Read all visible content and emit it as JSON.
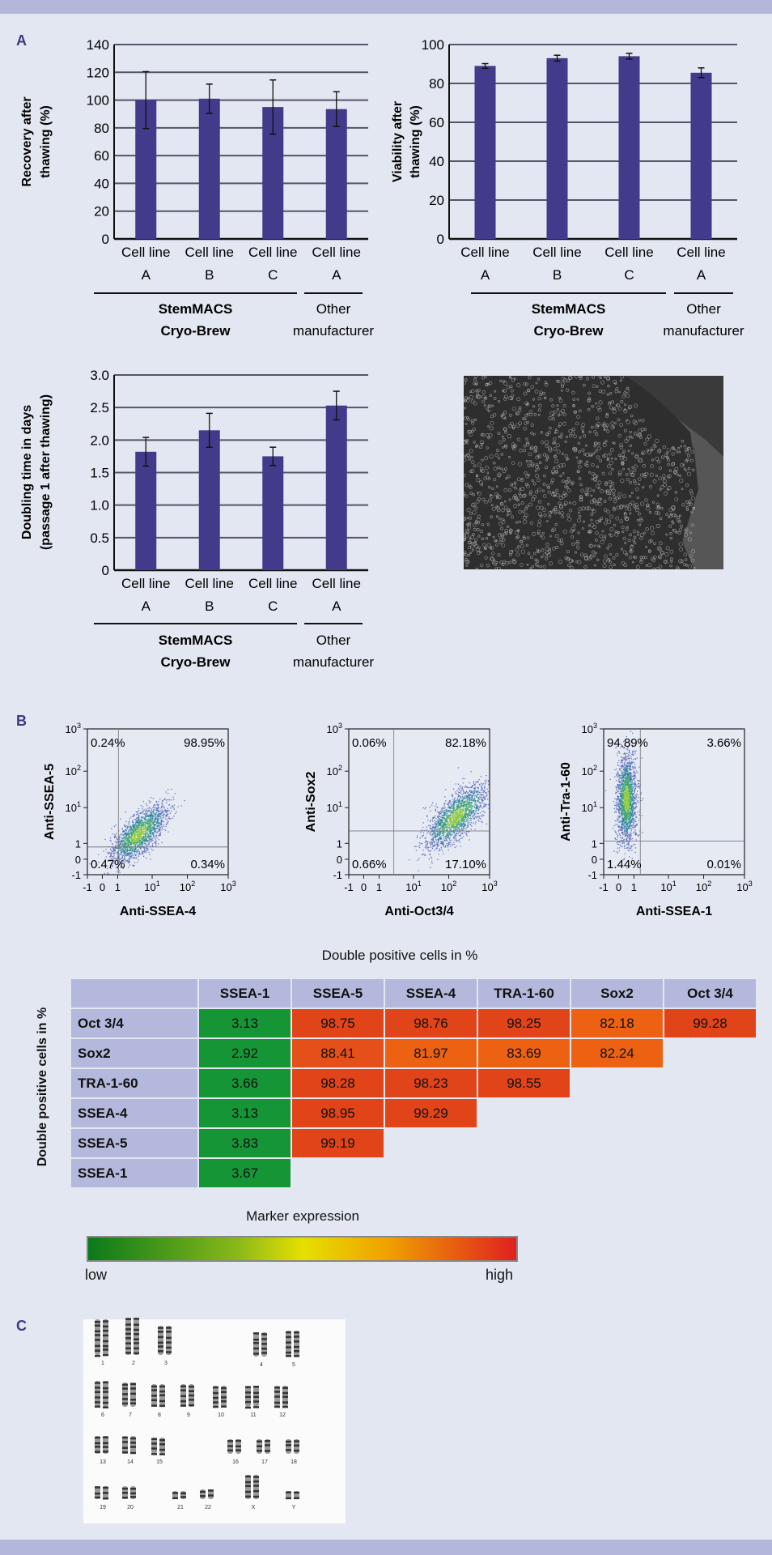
{
  "panels": {
    "a": "A",
    "b": "B",
    "c": "C"
  },
  "colors": {
    "bar": "#423a8a",
    "band": "#b3b7dc",
    "header_cell": "#b4b8dc",
    "low": "#169536",
    "mid": "#ec6212",
    "high": "#e2441a"
  },
  "chart_data": [
    {
      "type": "bar",
      "ylabel": [
        "Recovery after",
        "thawing (%)"
      ],
      "ylim": [
        0,
        140
      ],
      "yticks": [
        0,
        20,
        40,
        60,
        80,
        100,
        120,
        140
      ],
      "categories": [
        [
          "Cell line",
          "A"
        ],
        [
          "Cell line",
          "B"
        ],
        [
          "Cell line",
          "C"
        ],
        [
          "Cell line",
          "A"
        ]
      ],
      "values": [
        100,
        101,
        95,
        93.5
      ],
      "errors": [
        20.5,
        10.5,
        19.5,
        12.5
      ],
      "groups": [
        {
          "label": [
            "StemMACS",
            "Cryo-Brew"
          ],
          "span": [
            0,
            2
          ]
        },
        {
          "label": [
            "Other",
            "manufacturer"
          ],
          "span": [
            3,
            3
          ]
        }
      ],
      "grid": true
    },
    {
      "type": "bar",
      "ylabel": [
        "Viability after",
        "thawing (%)"
      ],
      "ylim": [
        0,
        100
      ],
      "yticks": [
        0,
        20,
        40,
        60,
        80,
        100
      ],
      "categories": [
        [
          "Cell line",
          "A"
        ],
        [
          "Cell line",
          "B"
        ],
        [
          "Cell line",
          "C"
        ],
        [
          "Cell line",
          "A"
        ]
      ],
      "values": [
        89,
        93,
        94,
        85.5
      ],
      "errors": [
        1.2,
        1.5,
        1.5,
        2.5
      ],
      "groups": [
        {
          "label": [
            "StemMACS",
            "Cryo-Brew"
          ],
          "span": [
            0,
            2
          ]
        },
        {
          "label": [
            "Other",
            "manufacturer"
          ],
          "span": [
            3,
            3
          ]
        }
      ],
      "grid": true
    },
    {
      "type": "bar",
      "ylabel": [
        "Doubling time in days",
        "(passage 1 after thawing)"
      ],
      "ylim": [
        0,
        3.0
      ],
      "yticks": [
        "0",
        "0.5",
        "1.0",
        "1.5",
        "2.0",
        "2.5",
        "3.0"
      ],
      "categories": [
        [
          "Cell line",
          "A"
        ],
        [
          "Cell line",
          "B"
        ],
        [
          "Cell line",
          "C"
        ],
        [
          "Cell line",
          "A"
        ]
      ],
      "values": [
        1.82,
        2.15,
        1.75,
        2.53
      ],
      "errors": [
        0.22,
        0.26,
        0.14,
        0.22
      ],
      "groups": [
        {
          "label": [
            "StemMACS",
            "Cryo-Brew"
          ],
          "span": [
            0,
            2
          ]
        },
        {
          "label": [
            "Other",
            "manufacturer"
          ],
          "span": [
            3,
            3
          ]
        }
      ],
      "grid": true
    },
    {
      "type": "scatter",
      "xlabel": "Anti-SSEA-4",
      "ylabel": "Anti-SSEA-5",
      "ticks": [
        "-1",
        "0",
        "1",
        "10^1",
        "10^2",
        "10^3"
      ],
      "quadrants": {
        "upper_left": "0.24%",
        "upper_right": "98.95%",
        "lower_left": "0.47%",
        "lower_right": "0.34%"
      }
    },
    {
      "type": "scatter",
      "xlabel": "Anti-Oct3/4",
      "ylabel": "Anti-Sox2",
      "ticks": [
        "-1",
        "0",
        "1",
        "10^1",
        "10^2",
        "10^3"
      ],
      "quadrants": {
        "upper_left": "0.06%",
        "upper_right": "82.18%",
        "lower_left": "0.66%",
        "lower_right": "17.10%"
      }
    },
    {
      "type": "scatter",
      "xlabel": "Anti-SSEA-1",
      "ylabel": "Anti-Tra-1-60",
      "ticks": [
        "-1",
        "0",
        "1",
        "10^1",
        "10^2",
        "10^3"
      ],
      "quadrants": {
        "upper_left": "94.89%",
        "upper_right": "3.66%",
        "lower_left": "1.44%",
        "lower_right": "0.01%"
      }
    },
    {
      "type": "heatmap",
      "title": "Double positive cells in %",
      "ylabel": "Double positive cells in %",
      "columns": [
        "SSEA-1",
        "SSEA-5",
        "SSEA-4",
        "TRA-1-60",
        "Sox2",
        "Oct 3/4"
      ],
      "rows": [
        {
          "label": "Oct 3/4",
          "values": [
            "3.13",
            "98.75",
            "98.76",
            "98.25",
            "82.18",
            "99.28"
          ]
        },
        {
          "label": "Sox2",
          "values": [
            "2.92",
            "88.41",
            "81.97",
            "83.69",
            "82.24"
          ]
        },
        {
          "label": "TRA-1-60",
          "values": [
            "3.66",
            "98.28",
            "98.23",
            "98.55"
          ]
        },
        {
          "label": "SSEA-4",
          "values": [
            "3.13",
            "98.95",
            "99.29"
          ]
        },
        {
          "label": "SSEA-5",
          "values": [
            "3.83",
            "99.19"
          ]
        },
        {
          "label": "SSEA-1",
          "values": [
            "3.67"
          ]
        }
      ],
      "legend": {
        "title": "Marker expression",
        "low": "low",
        "high": "high"
      }
    }
  ],
  "karyotype": {
    "labels": [
      "1",
      "2",
      "3",
      "4",
      "5",
      "6",
      "7",
      "8",
      "9",
      "10",
      "11",
      "12",
      "13",
      "14",
      "15",
      "16",
      "17",
      "18",
      "19",
      "20",
      "21",
      "22",
      "X",
      "Y"
    ]
  }
}
